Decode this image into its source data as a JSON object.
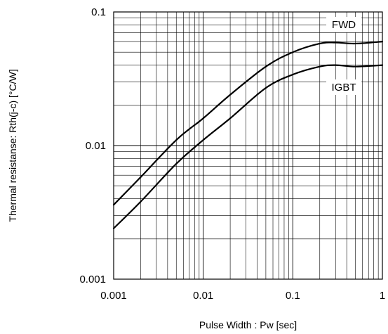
{
  "chart_data": {
    "type": "line",
    "title": "",
    "xlabel": "Pulse Width : Pw [sec]",
    "ylabel": "Thermal resistanse: Rth(j-c) [°C/W]",
    "xscale": "log",
    "yscale": "log",
    "xlim": [
      0.001,
      1
    ],
    "ylim": [
      0.001,
      0.1
    ],
    "x_tick_labels": [
      "0.001",
      "0.01",
      "0.1",
      "1"
    ],
    "y_tick_labels": [
      "0.001",
      "0.01",
      "0.1"
    ],
    "grid": true,
    "series": [
      {
        "name": "FWD",
        "color": "#000000",
        "x": [
          0.001,
          0.002,
          0.005,
          0.01,
          0.02,
          0.05,
          0.1,
          0.2,
          0.3,
          0.5,
          1
        ],
        "y": [
          0.0036,
          0.0058,
          0.011,
          0.016,
          0.024,
          0.039,
          0.05,
          0.058,
          0.059,
          0.058,
          0.06
        ]
      },
      {
        "name": "IGBT",
        "color": "#000000",
        "x": [
          0.001,
          0.002,
          0.005,
          0.01,
          0.02,
          0.05,
          0.1,
          0.2,
          0.3,
          0.5,
          1
        ],
        "y": [
          0.0024,
          0.0038,
          0.0073,
          0.011,
          0.016,
          0.027,
          0.034,
          0.039,
          0.04,
          0.039,
          0.04
        ]
      }
    ]
  }
}
